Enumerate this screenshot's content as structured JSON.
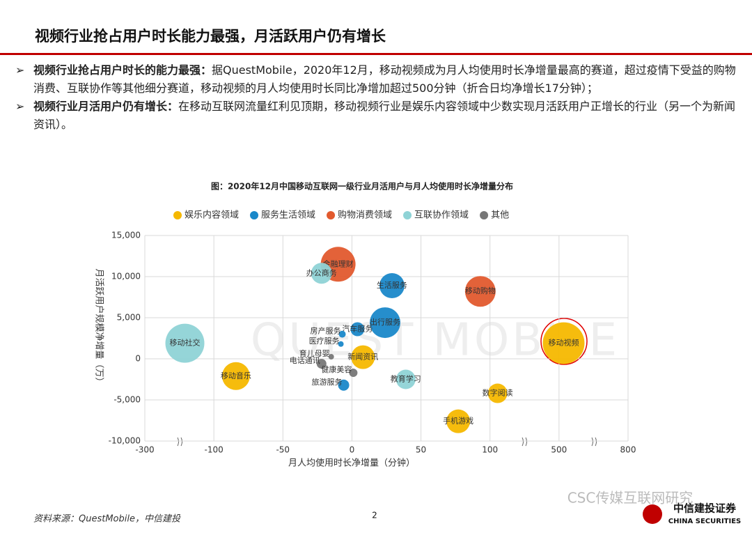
{
  "header": {
    "title": "视频行业抢占用户时长能力最强，月活跃用户仍有增长"
  },
  "bullets": [
    {
      "lead": "视频行业抢占用户时长的能力最强：",
      "text": "据QuestMobile，2020年12月，移动视频成为月人均使用时长净增量最高的赛道，超过疫情下受益的购物消费、互联协作等其他细分赛道，移动视频的月人均使用时长同比净增加超过500分钟（折合日均净增长17分钟）；"
    },
    {
      "lead": "视频行业月活用户仍有增长：",
      "text": "在移动互联网流量红利见顶期，移动视频行业是娱乐内容领域中少数实现月活跃用户正增长的行业（另一个为新闻资讯）。"
    }
  ],
  "chart_data": {
    "type": "scatter",
    "title": "图：2020年12月中国移动互联网一级行业月活用户与月人均使用时长净增量分布",
    "xlabel": "月人均使用时长净增量（分钟）",
    "ylabel": "月活跃用户规模净增量（万）",
    "watermark": "QUEST MOBILE",
    "xlim": [
      -300,
      800
    ],
    "xticks": [
      -300,
      -100,
      -50,
      0,
      50,
      100,
      500,
      800
    ],
    "ylim": [
      -10000,
      15000
    ],
    "yticks": [
      {
        "value": -10000,
        "label": "-10,000"
      },
      {
        "value": -5000,
        "label": "-5,000"
      },
      0,
      {
        "value": 5000,
        "label": "5,000"
      },
      {
        "value": 10000,
        "label": "10,000"
      },
      {
        "value": 15000,
        "label": "15,000"
      }
    ],
    "grid": true,
    "series": [
      {
        "name": "娱乐内容领域",
        "color": "#f5b800",
        "labels": [
          "移动视频",
          "移动音乐",
          "新闻资讯",
          "手机游戏",
          "数字阅读"
        ],
        "x": [
          520,
          -84,
          8,
          77,
          144
        ],
        "values": [
          1900,
          -2100,
          200,
          -7600,
          -4200
        ],
        "sizes": [
          30,
          20,
          17,
          17,
          14
        ]
      },
      {
        "name": "服务生活领域",
        "color": "#1a88c9",
        "labels": [
          "生活服务",
          "出行服务",
          "汽车服务",
          "房产服务",
          "医疗服务",
          "旅游服务"
        ],
        "x": [
          29,
          24,
          4,
          -7,
          -8,
          -6
        ],
        "values": [
          8900,
          4400,
          3600,
          3000,
          1800,
          -3200
        ],
        "sizes": [
          18,
          22,
          10,
          5,
          4,
          8
        ]
      },
      {
        "name": "购物消费领域",
        "color": "#e25a2e",
        "labels": [
          "金融理财",
          "移动购物"
        ],
        "x": [
          -10,
          93
        ],
        "values": [
          11500,
          8200
        ],
        "sizes": [
          25,
          22
        ]
      },
      {
        "name": "互联协作领域",
        "color": "#8fd3d6",
        "labels": [
          "移动社交",
          "办公商务",
          "教育学习"
        ],
        "x": [
          -184,
          -22,
          39
        ],
        "values": [
          1900,
          10400,
          -2500
        ],
        "sizes": [
          28,
          15,
          14
        ]
      },
      {
        "name": "其他",
        "color": "#777777",
        "labels": [
          "育儿母婴",
          "电话通讯",
          "健康美容"
        ],
        "x": [
          -15,
          -22,
          1
        ],
        "values": [
          250,
          -600,
          -1700
        ],
        "sizes": [
          4,
          7,
          6
        ]
      }
    ]
  },
  "footer": {
    "source": "资料来源：QuestMobile，中信建投",
    "page": "2",
    "watermark": "CSC传媒互联网研究",
    "logo_cn": "中信建投证券",
    "logo_en": "CHINA SECURITIES"
  }
}
